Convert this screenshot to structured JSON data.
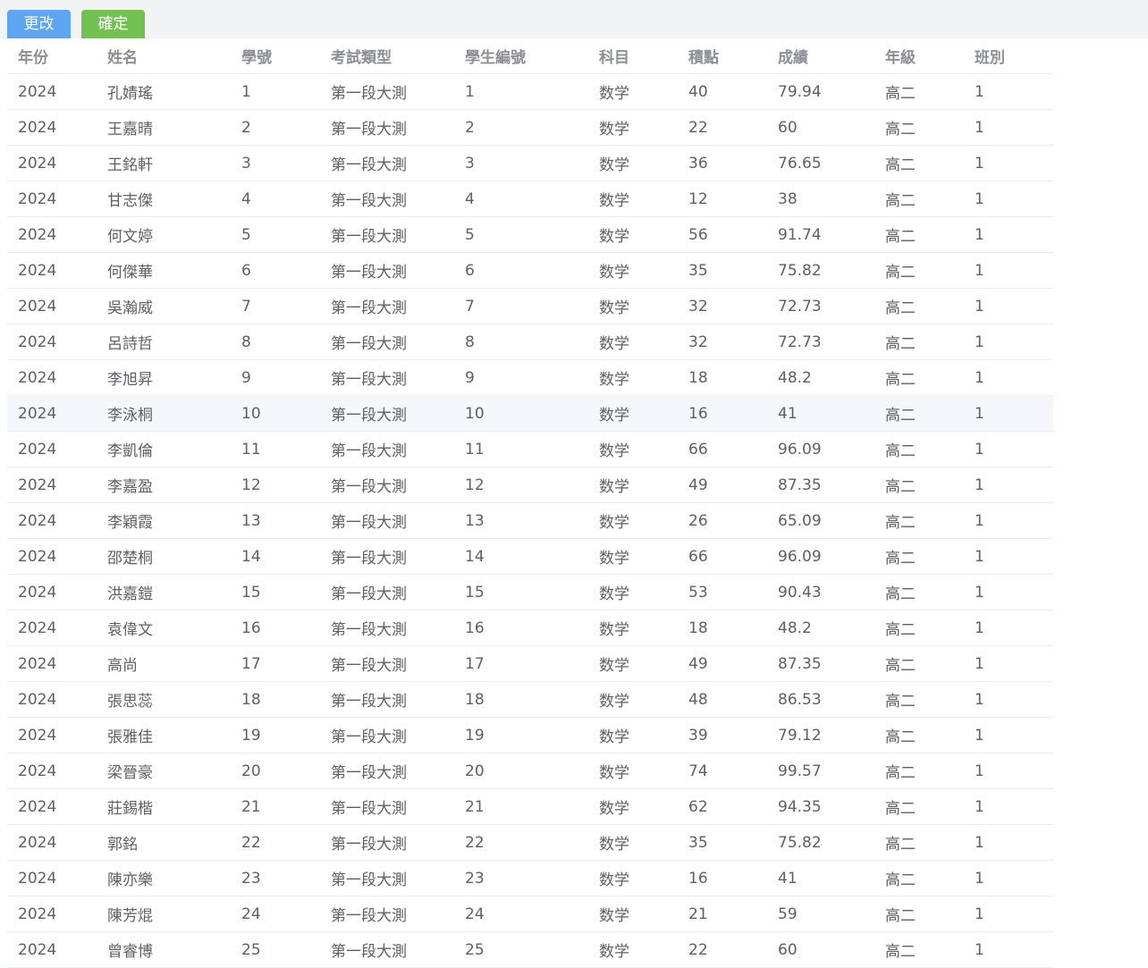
{
  "toolbar": {
    "edit_label": "更改",
    "confirm_label": "確定",
    "colors": {
      "edit": "#5fa5f2",
      "confirm": "#74c053"
    }
  },
  "table": {
    "columns": [
      "年份",
      "姓名",
      "學號",
      "考試類型",
      "學生編號",
      "科目",
      "積點",
      "成績",
      "年級",
      "班別"
    ],
    "rows": [
      [
        "2024",
        "孔婧瑤",
        "1",
        "第一段大測",
        "1",
        "数学",
        "40",
        "79.94",
        "高二",
        "1"
      ],
      [
        "2024",
        "王嘉晴",
        "2",
        "第一段大測",
        "2",
        "数学",
        "22",
        "60",
        "高二",
        "1"
      ],
      [
        "2024",
        "王銘軒",
        "3",
        "第一段大測",
        "3",
        "数学",
        "36",
        "76.65",
        "高二",
        "1"
      ],
      [
        "2024",
        "甘志傑",
        "4",
        "第一段大測",
        "4",
        "数学",
        "12",
        "38",
        "高二",
        "1"
      ],
      [
        "2024",
        "何文婷",
        "5",
        "第一段大測",
        "5",
        "数学",
        "56",
        "91.74",
        "高二",
        "1"
      ],
      [
        "2024",
        "何傑華",
        "6",
        "第一段大測",
        "6",
        "数学",
        "35",
        "75.82",
        "高二",
        "1"
      ],
      [
        "2024",
        "吳瀚威",
        "7",
        "第一段大測",
        "7",
        "数学",
        "32",
        "72.73",
        "高二",
        "1"
      ],
      [
        "2024",
        "呂詩哲",
        "8",
        "第一段大測",
        "8",
        "数学",
        "32",
        "72.73",
        "高二",
        "1"
      ],
      [
        "2024",
        "李旭昇",
        "9",
        "第一段大測",
        "9",
        "数学",
        "18",
        "48.2",
        "高二",
        "1"
      ],
      [
        "2024",
        "李泳桐",
        "10",
        "第一段大測",
        "10",
        "数学",
        "16",
        "41",
        "高二",
        "1"
      ],
      [
        "2024",
        "李凱倫",
        "11",
        "第一段大測",
        "11",
        "数学",
        "66",
        "96.09",
        "高二",
        "1"
      ],
      [
        "2024",
        "李嘉盈",
        "12",
        "第一段大測",
        "12",
        "数学",
        "49",
        "87.35",
        "高二",
        "1"
      ],
      [
        "2024",
        "李穎霞",
        "13",
        "第一段大測",
        "13",
        "数学",
        "26",
        "65.09",
        "高二",
        "1"
      ],
      [
        "2024",
        "邵楚桐",
        "14",
        "第一段大測",
        "14",
        "数学",
        "66",
        "96.09",
        "高二",
        "1"
      ],
      [
        "2024",
        "洪嘉鎧",
        "15",
        "第一段大測",
        "15",
        "数学",
        "53",
        "90.43",
        "高二",
        "1"
      ],
      [
        "2024",
        "袁偉文",
        "16",
        "第一段大測",
        "16",
        "数学",
        "18",
        "48.2",
        "高二",
        "1"
      ],
      [
        "2024",
        "高尚",
        "17",
        "第一段大測",
        "17",
        "数学",
        "49",
        "87.35",
        "高二",
        "1"
      ],
      [
        "2024",
        "張思蕊",
        "18",
        "第一段大測",
        "18",
        "数学",
        "48",
        "86.53",
        "高二",
        "1"
      ],
      [
        "2024",
        "張雅佳",
        "19",
        "第一段大測",
        "19",
        "数学",
        "39",
        "79.12",
        "高二",
        "1"
      ],
      [
        "2024",
        "梁晉豪",
        "20",
        "第一段大測",
        "20",
        "数学",
        "74",
        "99.57",
        "高二",
        "1"
      ],
      [
        "2024",
        "莊錫楷",
        "21",
        "第一段大測",
        "21",
        "数学",
        "62",
        "94.35",
        "高二",
        "1"
      ],
      [
        "2024",
        "郭銘",
        "22",
        "第一段大測",
        "22",
        "数学",
        "35",
        "75.82",
        "高二",
        "1"
      ],
      [
        "2024",
        "陳亦樂",
        "23",
        "第一段大測",
        "23",
        "数学",
        "16",
        "41",
        "高二",
        "1"
      ],
      [
        "2024",
        "陳芳焜",
        "24",
        "第一段大測",
        "24",
        "数学",
        "21",
        "59",
        "高二",
        "1"
      ],
      [
        "2024",
        "曾睿博",
        "25",
        "第一段大測",
        "25",
        "数学",
        "22",
        "60",
        "高二",
        "1"
      ]
    ]
  }
}
